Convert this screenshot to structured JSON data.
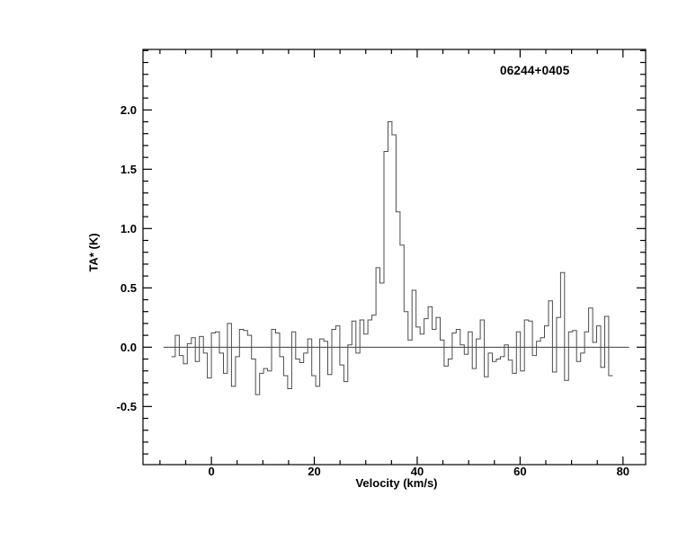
{
  "chart_data": {
    "type": "line",
    "subtype": "step-histogram-spectrum",
    "title": "06244+0405",
    "xlabel": "Velocity (km/s)",
    "ylabel": "TA* (K)",
    "xlim": [
      -13.3,
      84.4
    ],
    "ylim": [
      -0.99,
      2.51
    ],
    "grid": false,
    "legend": "none",
    "x_major_ticks": [
      0,
      20,
      40,
      60,
      80
    ],
    "x_tick_labels": [
      "0",
      "20",
      "40",
      "60",
      "80"
    ],
    "x_minor_step": 5,
    "y_major_ticks": [
      -0.5,
      0.0,
      0.5,
      1.0,
      1.5,
      2.0
    ],
    "y_tick_labels": [
      "-0.5",
      "0.0",
      "0.5",
      "1.0",
      "1.5",
      "2.0"
    ],
    "y_minor_step": 0.1,
    "baseline": {
      "value": 0.0,
      "x_start": -9.3,
      "x_end": 81.2
    },
    "channel_width_kms": 0.78,
    "peak": {
      "velocity": 34.7,
      "ta_k": 1.9
    },
    "secondary_spike": {
      "velocity": 68.2,
      "ta_k": 0.63
    },
    "series": [
      {
        "name": "spectrum",
        "x": [
          -7.41,
          -6.63,
          -5.85,
          -5.07,
          -4.29,
          -3.51,
          -2.73,
          -1.95,
          -1.17,
          -0.39,
          0.39,
          1.17,
          1.95,
          2.73,
          3.51,
          4.29,
          5.07,
          5.85,
          6.63,
          7.41,
          8.19,
          8.97,
          9.75,
          10.53,
          11.31,
          12.09,
          12.87,
          13.65,
          14.43,
          15.21,
          15.99,
          16.77,
          17.55,
          18.33,
          19.11,
          19.89,
          20.67,
          21.45,
          22.23,
          23.01,
          23.79,
          24.57,
          25.35,
          26.13,
          26.91,
          27.69,
          28.47,
          29.25,
          30.03,
          30.81,
          31.59,
          32.37,
          33.15,
          33.93,
          34.71,
          35.49,
          36.27,
          37.05,
          37.83,
          38.61,
          39.39,
          40.17,
          40.95,
          41.73,
          42.51,
          43.29,
          44.07,
          44.85,
          45.63,
          46.41,
          47.19,
          47.97,
          48.75,
          49.53,
          50.31,
          51.09,
          51.87,
          52.65,
          53.43,
          54.21,
          54.99,
          55.77,
          56.55,
          57.33,
          58.11,
          58.89,
          59.67,
          60.45,
          61.23,
          62.01,
          62.79,
          63.57,
          64.35,
          65.13,
          65.91,
          66.69,
          67.47,
          68.25,
          69.03,
          69.81,
          70.59,
          71.37,
          72.15,
          72.93,
          73.71,
          74.49,
          75.27,
          76.05,
          76.83,
          77.61
        ],
        "y": [
          -0.08,
          0.1,
          -0.07,
          -0.14,
          0.03,
          0.08,
          -0.12,
          0.09,
          -0.05,
          -0.26,
          0.12,
          0.13,
          -0.05,
          -0.22,
          0.2,
          -0.33,
          -0.08,
          0.15,
          0.14,
          0.1,
          -0.1,
          -0.4,
          -0.22,
          -0.18,
          -0.2,
          0.15,
          0.12,
          -0.08,
          -0.24,
          -0.35,
          0.13,
          -0.1,
          -0.13,
          -0.05,
          0.07,
          -0.24,
          -0.33,
          0.07,
          0.05,
          -0.23,
          0.15,
          0.18,
          -0.15,
          -0.29,
          0.02,
          0.22,
          -0.05,
          0.23,
          0.11,
          0.23,
          0.27,
          0.67,
          0.54,
          1.65,
          1.9,
          1.79,
          1.14,
          0.86,
          0.3,
          0.06,
          0.48,
          0.17,
          0.11,
          0.24,
          0.34,
          0.15,
          0.25,
          0.06,
          -0.16,
          -0.1,
          0.12,
          0.15,
          0.02,
          -0.06,
          0.13,
          -0.18,
          0.07,
          0.23,
          -0.25,
          -0.05,
          -0.12,
          -0.1,
          -0.08,
          0.02,
          -0.11,
          -0.22,
          0.13,
          -0.2,
          0.23,
          0.22,
          -0.07,
          0.05,
          0.08,
          0.18,
          0.39,
          -0.21,
          0.25,
          0.63,
          -0.28,
          0.13,
          0.14,
          -0.12,
          -0.05,
          0.13,
          0.33,
          0.04,
          0.18,
          -0.17,
          0.26,
          -0.24
        ]
      }
    ]
  },
  "colors": {
    "background": "#ffffff",
    "axis": "#000000",
    "text": "#000000",
    "spectrum_line": "#4d4d4d",
    "baseline_line": "#3d3d3d"
  }
}
